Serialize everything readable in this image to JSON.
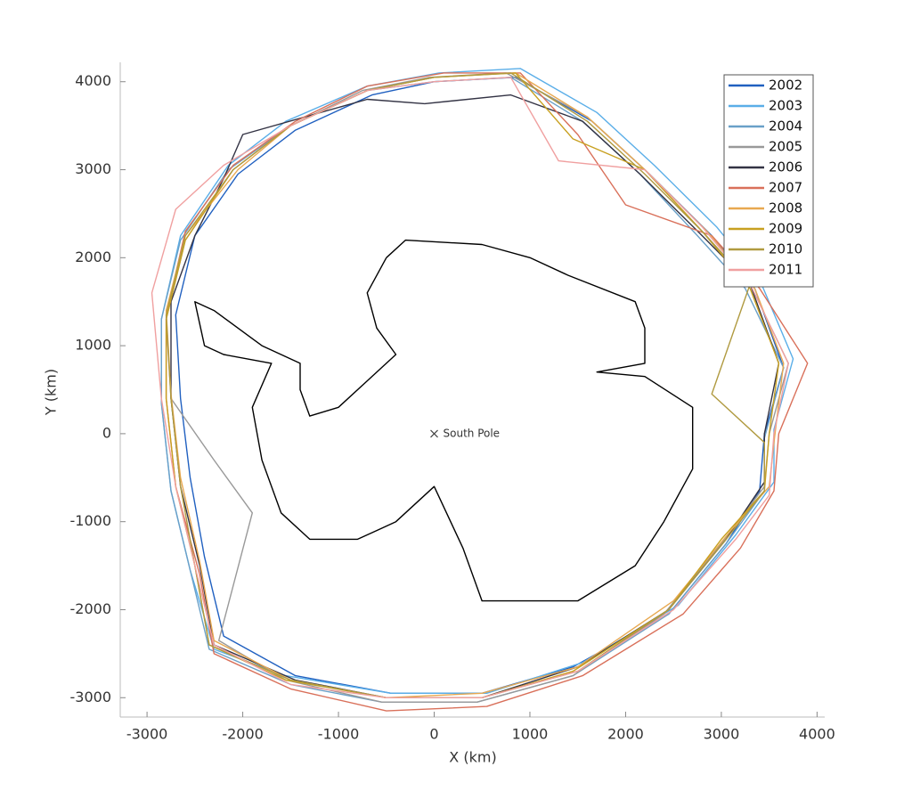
{
  "chart_data": {
    "type": "line",
    "xlabel": "X (km)",
    "ylabel": "Y (km)",
    "xlim": [
      -3280,
      4080
    ],
    "ylim": [
      -3220,
      4220
    ],
    "xticks": [
      -3000,
      -2000,
      -1000,
      0,
      1000,
      2000,
      3000,
      4000
    ],
    "yticks": [
      -3000,
      -2000,
      -1000,
      0,
      1000,
      2000,
      3000,
      4000
    ],
    "grid": false,
    "legend": "upper right",
    "annotations": [
      {
        "text": "South Pole",
        "x": 0,
        "y": 0
      }
    ],
    "coastline": {
      "color": "#000000",
      "x": [
        -500,
        -300,
        500,
        1000,
        1400,
        2100,
        2200,
        2200,
        1700,
        2200,
        2700,
        2700,
        2400,
        2100,
        1500,
        500,
        300,
        0,
        -400,
        -600,
        -800,
        -1300,
        -1600,
        -1800,
        -1900,
        -1700,
        -2200,
        -2400,
        -2500,
        -2300,
        -1800,
        -1400,
        -1400,
        -1300,
        -1000,
        -700,
        -400,
        -600,
        -700,
        -500
      ],
      "y": [
        2000,
        2200,
        2150,
        2000,
        1800,
        1500,
        1200,
        800,
        700,
        650,
        300,
        -400,
        -1000,
        -1500,
        -1900,
        -1900,
        -1300,
        -600,
        -1000,
        -1100,
        -1200,
        -1200,
        -900,
        -300,
        300,
        800,
        900,
        1000,
        1500,
        1400,
        1000,
        800,
        500,
        200,
        300,
        600,
        900,
        1200,
        1600,
        2000
      ]
    },
    "series": [
      {
        "name": "2002",
        "color": "#2060c0",
        "x": [
          0,
          850,
          1650,
          2250,
          2900,
          3350,
          3650,
          3450,
          3400,
          3050,
          2450,
          1450,
          500,
          -450,
          -1450,
          -2200,
          -2400,
          -2550,
          -2650,
          -2700,
          -2500,
          -2050,
          -1450,
          -650,
          0
        ],
        "values": [
          4000,
          4050,
          3550,
          2950,
          2250,
          1650,
          750,
          0,
          -650,
          -1250,
          -2050,
          -2650,
          -2950,
          -2950,
          -2750,
          -2300,
          -1400,
          -500,
          400,
          1350,
          2250,
          2950,
          3450,
          3850,
          4000
        ]
      },
      {
        "name": "2003",
        "color": "#5aaee8",
        "x": [
          50,
          900,
          1700,
          2300,
          2950,
          3400,
          3750,
          3550,
          3550,
          3150,
          2550,
          1550,
          550,
          -450,
          -1550,
          -2300,
          -2550,
          -2750,
          -2850,
          -2850,
          -2650,
          -2150,
          -1550,
          -700,
          50
        ],
        "values": [
          4100,
          4150,
          3650,
          3050,
          2350,
          1750,
          850,
          50,
          -550,
          -1150,
          -1950,
          -2600,
          -2950,
          -2950,
          -2750,
          -2450,
          -1550,
          -650,
          350,
          1300,
          2250,
          3050,
          3550,
          3950,
          4100
        ]
      },
      {
        "name": "2004",
        "color": "#6aa0c8",
        "x": [
          0,
          800,
          1550,
          2150,
          2750,
          3250,
          3650,
          3450,
          3450,
          3050,
          2450,
          1450,
          450,
          -550,
          -1500,
          -2350,
          -2550,
          -2750,
          -2850,
          -2850,
          -2650,
          -2150,
          -1500,
          -700,
          0
        ],
        "values": [
          4000,
          4050,
          3550,
          2950,
          2250,
          1650,
          750,
          -50,
          -650,
          -1250,
          -2050,
          -2750,
          -3050,
          -3050,
          -2850,
          -2450,
          -1550,
          -650,
          350,
          1300,
          2200,
          3000,
          3500,
          3900,
          4000
        ]
      },
      {
        "name": "2005",
        "color": "#999999",
        "x": [
          -50,
          750,
          1600,
          2200,
          2800,
          3300,
          3700,
          3500,
          3450,
          3000,
          2400,
          1450,
          450,
          -550,
          -1550,
          -2250,
          -1900,
          -2300,
          -2750,
          -2800,
          -2600,
          -2100,
          -1500,
          -750,
          -50
        ],
        "values": [
          4050,
          4100,
          3600,
          3000,
          2300,
          1700,
          800,
          0,
          -600,
          -1250,
          -2050,
          -2750,
          -3050,
          -3050,
          -2800,
          -2350,
          -900,
          -300,
          400,
          1300,
          2200,
          3000,
          3500,
          3900,
          4050
        ]
      },
      {
        "name": "2006",
        "color": "#333344",
        "x": [
          -100,
          800,
          1550,
          2150,
          2800,
          3300,
          3600,
          3450,
          3450,
          3050,
          2450,
          1500,
          500,
          -500,
          -1450,
          -2300,
          -2450,
          -2650,
          -2750,
          -2750,
          -2500,
          -2200,
          -2000,
          -700,
          -100
        ],
        "values": [
          3750,
          3850,
          3550,
          2950,
          2250,
          1700,
          800,
          0,
          -550,
          -1200,
          -2000,
          -2650,
          -3000,
          -3000,
          -2800,
          -2400,
          -1500,
          -600,
          400,
          1500,
          2250,
          2900,
          3400,
          3800,
          3750
        ]
      },
      {
        "name": "2007",
        "color": "#d9705a",
        "x": [
          100,
          900,
          1500,
          2000,
          2900,
          3400,
          3900,
          3600,
          3550,
          3200,
          2600,
          1550,
          550,
          -500,
          -1500,
          -2300,
          -2450,
          -2700,
          -2800,
          -2800,
          -2600,
          -2100,
          -1450,
          -700,
          100
        ],
        "values": [
          4100,
          4100,
          3400,
          2600,
          2250,
          1650,
          800,
          0,
          -650,
          -1300,
          -2050,
          -2750,
          -3100,
          -3150,
          -2900,
          -2500,
          -1600,
          -600,
          400,
          1350,
          2300,
          3050,
          3550,
          3950,
          4100
        ]
      },
      {
        "name": "2008",
        "color": "#e8a850",
        "x": [
          0,
          850,
          1600,
          2200,
          2850,
          3350,
          3650,
          3550,
          3500,
          3100,
          2500,
          1500,
          500,
          -500,
          -1500,
          -2300,
          -2450,
          -2650,
          -2750,
          -2800,
          -2600,
          -2050,
          -1500,
          -700,
          0
        ],
        "values": [
          4050,
          4100,
          3600,
          3000,
          2300,
          1650,
          800,
          -100,
          -600,
          -1100,
          -1900,
          -2650,
          -2950,
          -3000,
          -2800,
          -2350,
          -1450,
          -500,
          450,
          1400,
          2250,
          3000,
          3500,
          3900,
          4050
        ]
      },
      {
        "name": "2009",
        "color": "#c8a020",
        "x": [
          0,
          850,
          1450,
          2200,
          2800,
          3300,
          3600,
          3500,
          3450,
          3000,
          2450,
          1450,
          500,
          -500,
          -1550,
          -2350,
          -2500,
          -2700,
          -2800,
          -2800,
          -2600,
          -2100,
          -1500,
          -700,
          0
        ],
        "values": [
          4050,
          4100,
          3350,
          3000,
          2300,
          1650,
          800,
          0,
          -650,
          -1200,
          -2000,
          -2700,
          -3000,
          -3000,
          -2800,
          -2400,
          -1500,
          -600,
          400,
          1300,
          2200,
          3000,
          3500,
          3900,
          4050
        ]
      },
      {
        "name": "2010",
        "color": "#b09a40",
        "x": [
          0,
          800,
          1600,
          2200,
          2800,
          3300,
          2900,
          3450,
          3450,
          3050,
          2450,
          1500,
          500,
          -500,
          -1500,
          -2350,
          -2500,
          -2650,
          -2750,
          -2800,
          -2600,
          -2100,
          -1500,
          -700,
          0
        ],
        "values": [
          4050,
          4100,
          3550,
          2950,
          2300,
          1700,
          450,
          -100,
          -650,
          -1200,
          -2000,
          -2700,
          -3000,
          -3000,
          -2800,
          -2400,
          -1500,
          -600,
          400,
          1350,
          2250,
          3000,
          3500,
          3900,
          4050
        ]
      },
      {
        "name": "2011",
        "color": "#f0a0a0",
        "x": [
          0,
          800,
          1300,
          2200,
          2800,
          3300,
          3700,
          3550,
          3500,
          3150,
          2500,
          1500,
          500,
          -500,
          -1500,
          -2300,
          -2500,
          -2700,
          -2850,
          -2950,
          -2700,
          -2200,
          -1500,
          -700,
          0
        ],
        "values": [
          4000,
          4050,
          3100,
          3000,
          2350,
          1700,
          800,
          0,
          -700,
          -1200,
          -2000,
          -2700,
          -3000,
          -3000,
          -2850,
          -2400,
          -1500,
          -600,
          400,
          1600,
          2550,
          3050,
          3500,
          3900,
          4000
        ]
      }
    ]
  }
}
